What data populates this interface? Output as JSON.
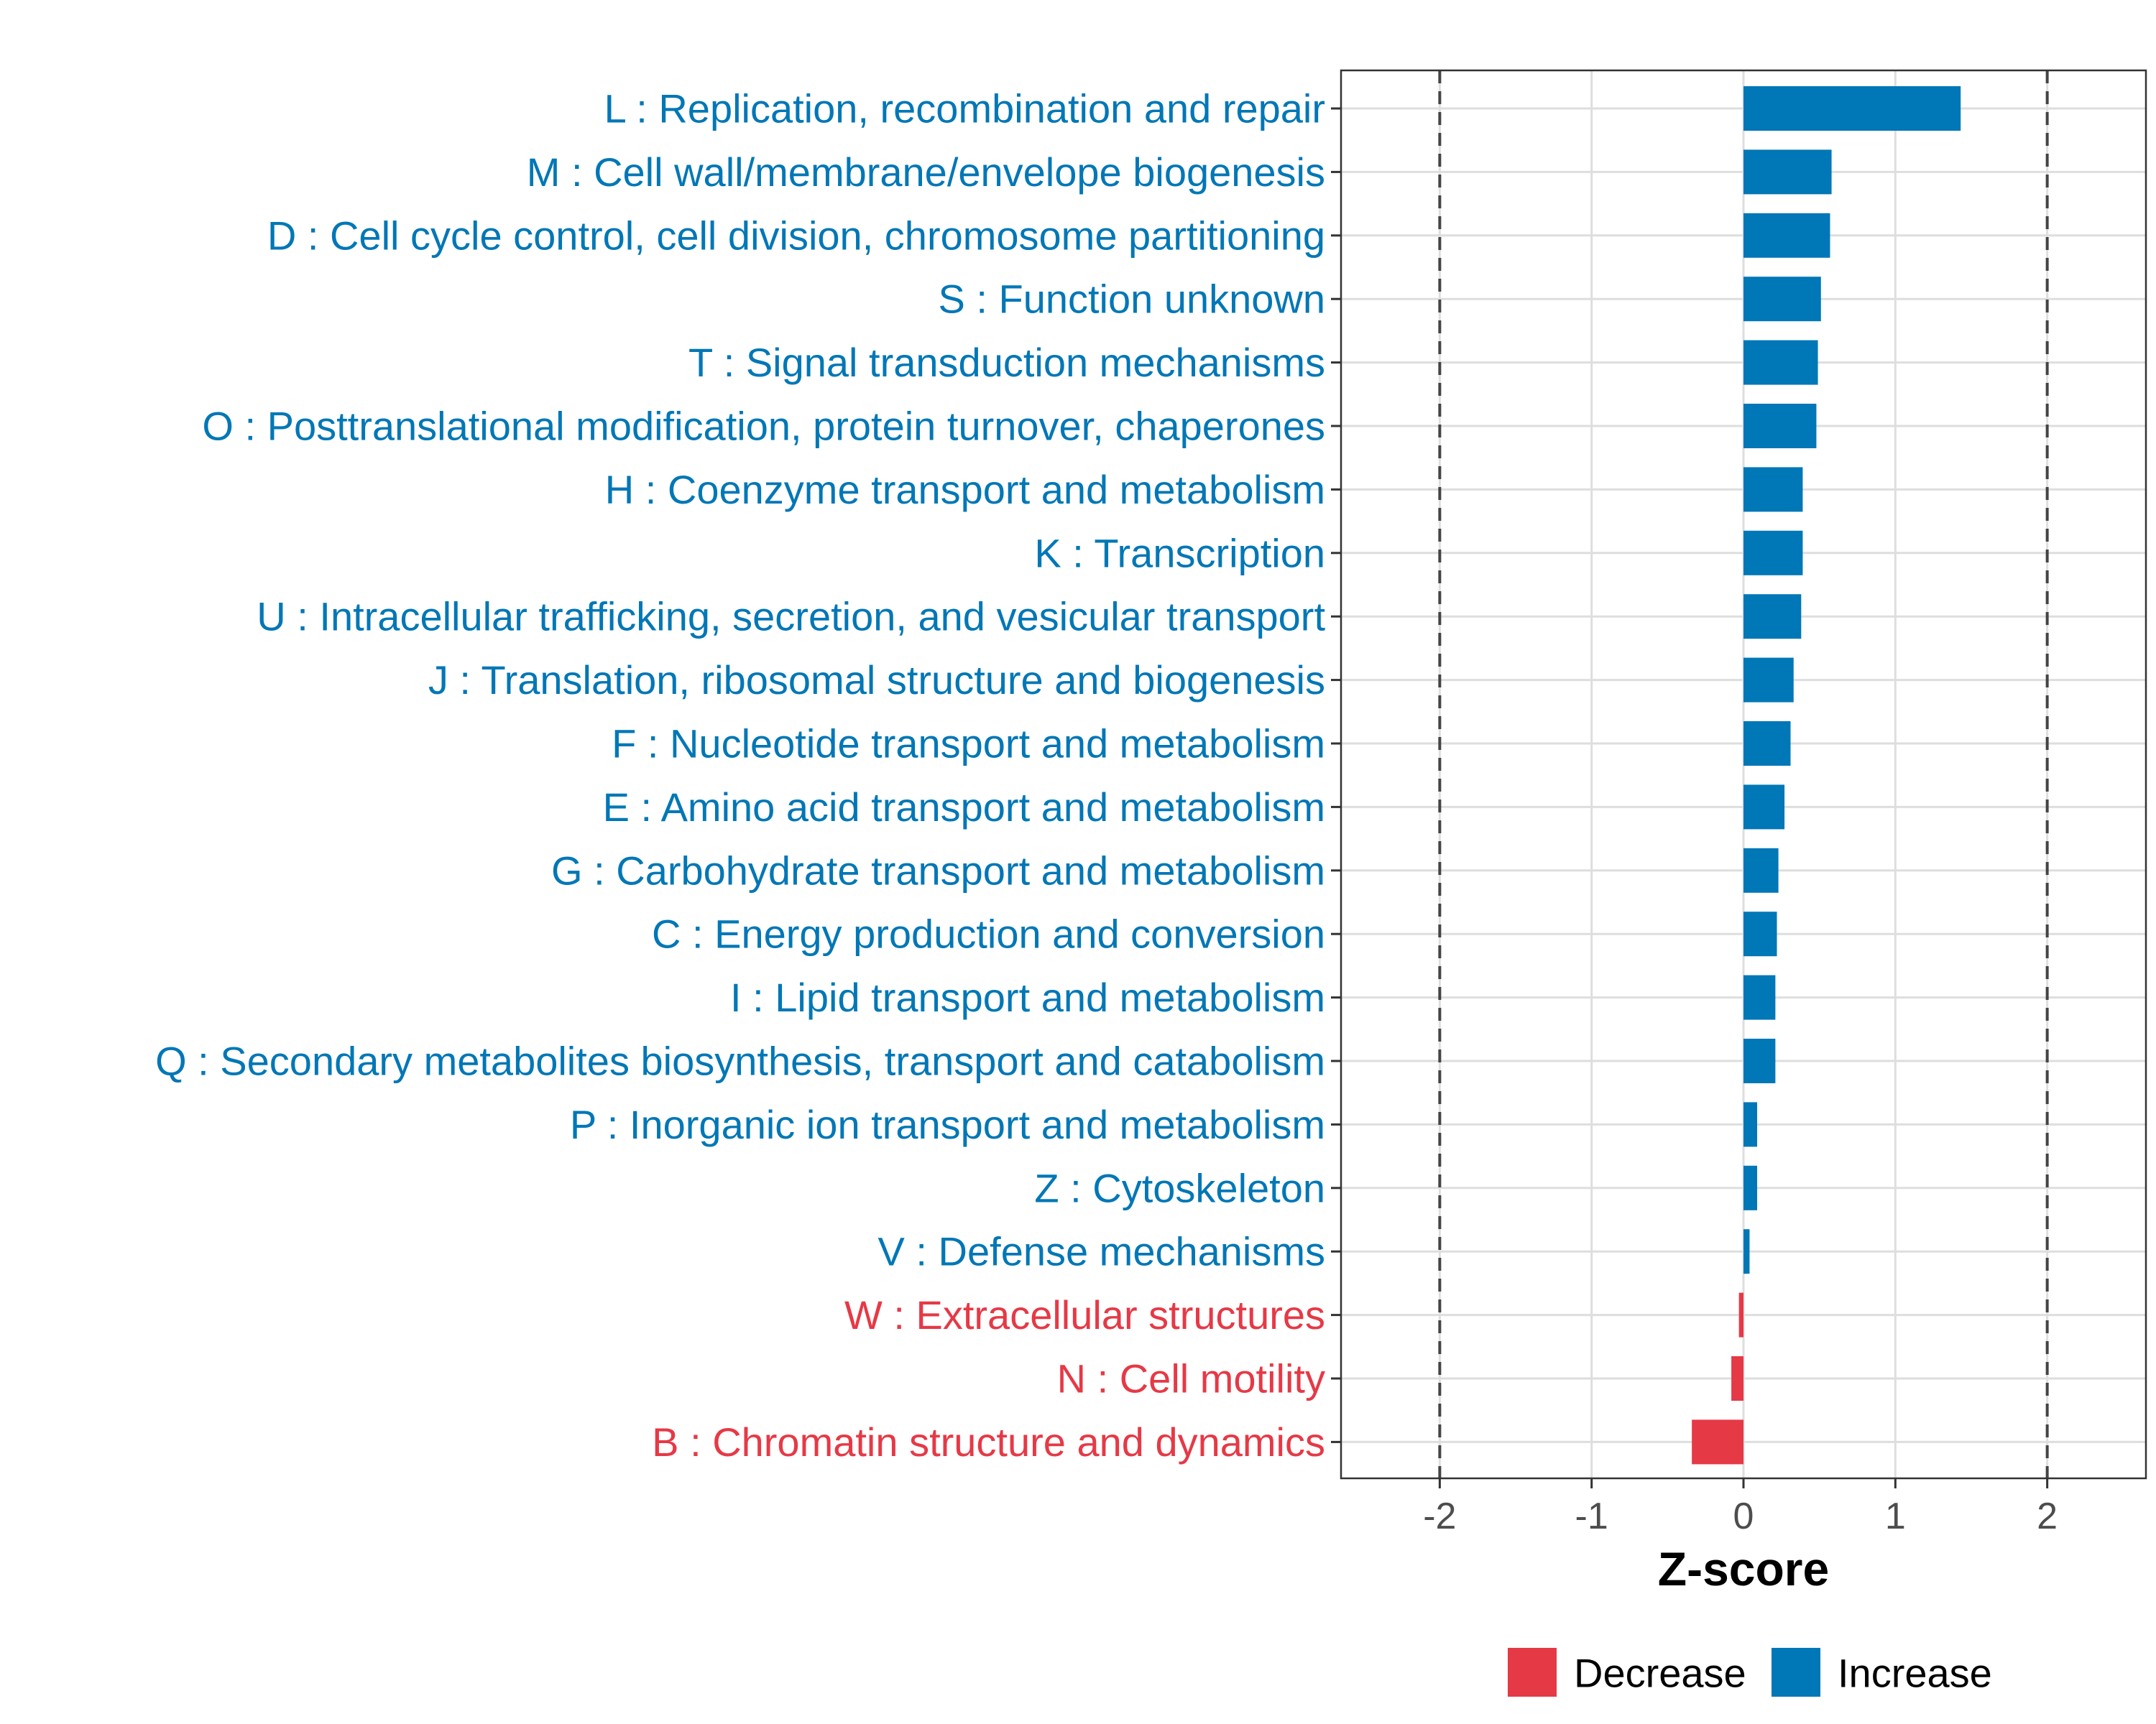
{
  "chart_data": {
    "type": "bar",
    "orientation": "horizontal",
    "xlabel": "Z-score",
    "xlim": [
      -2.65,
      2.65
    ],
    "xticks": [
      -2,
      -1,
      0,
      1,
      2
    ],
    "xtick_labels": [
      "-2",
      "-1",
      "0",
      "1",
      "2"
    ],
    "reference_lines": [
      -2,
      2
    ],
    "grid": true,
    "legend_position": "bottom",
    "legend": [
      {
        "label": "Decrease",
        "color": "#e63946"
      },
      {
        "label": "Increase",
        "color": "#0077b6"
      }
    ],
    "categories": [
      "L : Replication, recombination and repair",
      "M : Cell wall/membrane/envelope biogenesis",
      "D : Cell cycle control, cell division, chromosome partitioning",
      "S : Function unknown",
      "T : Signal transduction mechanisms",
      "O : Posttranslational modification, protein turnover, chaperones",
      "H : Coenzyme transport and metabolism",
      "K : Transcription",
      "U : Intracellular trafficking, secretion, and vesicular transport",
      "J : Translation, ribosomal structure and biogenesis",
      "F : Nucleotide transport and metabolism",
      "E : Amino acid transport and metabolism",
      "G : Carbohydrate transport and metabolism",
      "C : Energy production and conversion",
      "I : Lipid transport and metabolism",
      "Q : Secondary metabolites biosynthesis, transport and catabolism",
      "P : Inorganic ion transport and metabolism",
      "Z : Cytoskeleton",
      "V : Defense mechanisms",
      "W : Extracellular structures",
      "N : Cell motility",
      "B : Chromatin structure and dynamics"
    ],
    "values": [
      1.43,
      0.58,
      0.57,
      0.51,
      0.49,
      0.48,
      0.39,
      0.39,
      0.38,
      0.33,
      0.31,
      0.27,
      0.23,
      0.22,
      0.21,
      0.21,
      0.09,
      0.09,
      0.04,
      -0.03,
      -0.08,
      -0.34
    ],
    "direction": [
      "Increase",
      "Increase",
      "Increase",
      "Increase",
      "Increase",
      "Increase",
      "Increase",
      "Increase",
      "Increase",
      "Increase",
      "Increase",
      "Increase",
      "Increase",
      "Increase",
      "Increase",
      "Increase",
      "Increase",
      "Increase",
      "Increase",
      "Decrease",
      "Decrease",
      "Decrease"
    ]
  }
}
